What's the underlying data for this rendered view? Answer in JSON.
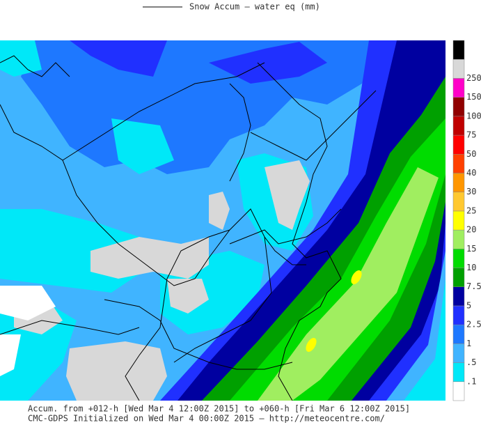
{
  "title": "Snow Accum – water eq (mm)",
  "legend": {
    "levels": [
      {
        "value": 0.1,
        "label": ".1"
      },
      {
        "value": 0.5,
        "label": ".5"
      },
      1,
      2.5,
      5,
      7.5,
      10,
      15,
      20,
      25,
      30,
      40,
      50,
      75,
      100,
      150,
      250
    ],
    "colors": [
      "#ffffff",
      "#00e8f8",
      "#40b4ff",
      "#1e78ff",
      "#2030ff",
      "#0000a0",
      "#00a000",
      "#00dc00",
      "#a0ee60",
      "#ffff00",
      "#ffc830",
      "#ff9600",
      "#ff4000",
      "#ff0000",
      "#c00000",
      "#900000",
      "#ff00c8",
      "#d8d8d8",
      "#000000"
    ]
  },
  "footer": [
    "Accum. from +012-h [Wed Mar 4 12:00Z 2015] to +060-h [Fri Mar 6 12:00Z 2015]",
    "CMC-GDPS Initialized on Wed Mar 4 00:00Z 2015 — http://meteocentre.com/"
  ]
}
